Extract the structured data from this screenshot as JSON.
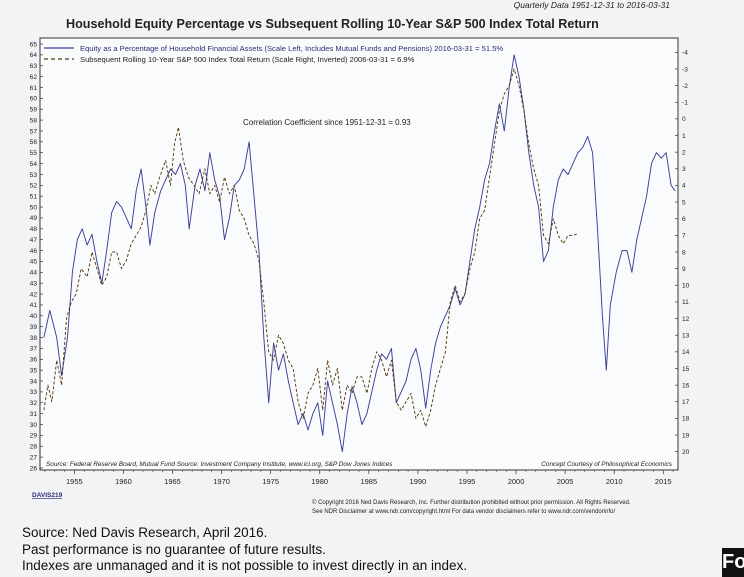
{
  "chart_data": {
    "type": "line",
    "title": "Household Equity Percentage vs Subsequent Rolling 10-Year S&P 500 Index Total Return",
    "subtitle": "Quarterly Data 1951-12-31 to 2016-03-31",
    "annotation": "Correlation Coefficient since 1951-12-31 = 0.93",
    "source_note": "Source: Federal Reserve Board, Mutual Fund Source: Investment Company Institute, www.ici.org, S&P Dow Jones Indices",
    "credit": "Concept Courtesy of Philosophical Economics",
    "chart_id": "DAVIS219",
    "copyright_line1": "© Copyright 2016 Ned Davis Research, Inc. Further distribution prohibited without prior permission. All Rights Reserved.",
    "copyright_line2": "See NDR Disclaimer at www.ndr.com/copyright.html  For data vendor disclaimers refer to www.ndr.com/vendorinfo/",
    "x_ticks": [
      1955,
      1960,
      1965,
      1970,
      1975,
      1980,
      1985,
      1990,
      1995,
      2000,
      2005,
      2010,
      2015
    ],
    "xlim": [
      1951.5,
      2016.5
    ],
    "left_axis": {
      "ticks": [
        26,
        27,
        28,
        29,
        30,
        31,
        32,
        33,
        34,
        35,
        36,
        37,
        38,
        39,
        40,
        41,
        42,
        43,
        44,
        45,
        46,
        47,
        48,
        49,
        50,
        51,
        52,
        53,
        54,
        55,
        56,
        57,
        58,
        59,
        60,
        61,
        62,
        63,
        64,
        65
      ],
      "range": [
        26,
        65
      ]
    },
    "right_axis": {
      "ticks": [
        -4,
        -3,
        -2,
        -1,
        0,
        1,
        2,
        3,
        4,
        5,
        6,
        7,
        8,
        9,
        10,
        11,
        12,
        13,
        14,
        15,
        16,
        17,
        18,
        19,
        20
      ],
      "range": [
        -4.5,
        20.5
      ],
      "inverted": true
    },
    "legend_placement": "top-left",
    "series": [
      {
        "name": "Equity as a Percentage of Household Financial Assets (Scale Left, Includes Mutual Funds and Pensions) 2016-03-31 = 51.5%",
        "axis": "left",
        "color": "#3b3f9a",
        "style": "solid",
        "points": [
          [
            1951.9,
            38
          ],
          [
            1952.5,
            40.5
          ],
          [
            1953.2,
            38
          ],
          [
            1953.7,
            34.5
          ],
          [
            1954.3,
            38
          ],
          [
            1954.8,
            44
          ],
          [
            1955.3,
            47
          ],
          [
            1955.8,
            48
          ],
          [
            1956.3,
            46.5
          ],
          [
            1956.8,
            47.5
          ],
          [
            1957.3,
            45
          ],
          [
            1957.8,
            43
          ],
          [
            1958.3,
            46
          ],
          [
            1958.8,
            49.5
          ],
          [
            1959.3,
            50.5
          ],
          [
            1959.8,
            50
          ],
          [
            1960.3,
            49
          ],
          [
            1960.8,
            48
          ],
          [
            1961.3,
            51.5
          ],
          [
            1961.8,
            53.5
          ],
          [
            1962.3,
            50
          ],
          [
            1962.7,
            46.5
          ],
          [
            1963.2,
            49.5
          ],
          [
            1963.8,
            51.5
          ],
          [
            1964.3,
            52.5
          ],
          [
            1964.8,
            53.5
          ],
          [
            1965.3,
            53
          ],
          [
            1965.8,
            54
          ],
          [
            1966.3,
            52
          ],
          [
            1966.7,
            48
          ],
          [
            1967.3,
            52
          ],
          [
            1967.8,
            53.5
          ],
          [
            1968.3,
            51.5
          ],
          [
            1968.8,
            55
          ],
          [
            1969.3,
            52.5
          ],
          [
            1969.8,
            51
          ],
          [
            1970.3,
            47
          ],
          [
            1970.8,
            49
          ],
          [
            1971.3,
            52
          ],
          [
            1971.8,
            52.5
          ],
          [
            1972.3,
            53.5
          ],
          [
            1972.8,
            56
          ],
          [
            1973.3,
            51
          ],
          [
            1973.8,
            46
          ],
          [
            1974.3,
            38
          ],
          [
            1974.8,
            32
          ],
          [
            1975.3,
            37.5
          ],
          [
            1975.8,
            35
          ],
          [
            1976.3,
            36.5
          ],
          [
            1976.8,
            34
          ],
          [
            1977.3,
            32
          ],
          [
            1977.8,
            30
          ],
          [
            1978.3,
            31
          ],
          [
            1978.8,
            29.5
          ],
          [
            1979.3,
            31
          ],
          [
            1979.8,
            32
          ],
          [
            1980.3,
            29
          ],
          [
            1980.8,
            34
          ],
          [
            1981.3,
            32
          ],
          [
            1981.8,
            30
          ],
          [
            1982.3,
            27.5
          ],
          [
            1982.8,
            31
          ],
          [
            1983.3,
            33.5
          ],
          [
            1983.8,
            32
          ],
          [
            1984.3,
            30
          ],
          [
            1984.8,
            31
          ],
          [
            1985.3,
            33
          ],
          [
            1985.8,
            35
          ],
          [
            1986.3,
            36.5
          ],
          [
            1986.8,
            36
          ],
          [
            1987.3,
            37
          ],
          [
            1987.8,
            32
          ],
          [
            1988.3,
            33
          ],
          [
            1988.8,
            34
          ],
          [
            1989.3,
            36
          ],
          [
            1989.8,
            37
          ],
          [
            1990.3,
            35
          ],
          [
            1990.8,
            31.5
          ],
          [
            1991.3,
            35
          ],
          [
            1991.8,
            37.5
          ],
          [
            1992.3,
            39
          ],
          [
            1992.8,
            40
          ],
          [
            1993.3,
            41
          ],
          [
            1993.8,
            42.5
          ],
          [
            1994.3,
            41
          ],
          [
            1994.8,
            42
          ],
          [
            1995.3,
            45
          ],
          [
            1995.8,
            48
          ],
          [
            1996.3,
            50
          ],
          [
            1996.8,
            52.5
          ],
          [
            1997.3,
            54
          ],
          [
            1997.8,
            57
          ],
          [
            1998.3,
            59.5
          ],
          [
            1998.8,
            57
          ],
          [
            1999.3,
            61
          ],
          [
            1999.8,
            64
          ],
          [
            2000.3,
            62
          ],
          [
            2000.8,
            59
          ],
          [
            2001.3,
            55
          ],
          [
            2001.8,
            52
          ],
          [
            2002.3,
            50
          ],
          [
            2002.8,
            45
          ],
          [
            2003.3,
            46
          ],
          [
            2003.8,
            50
          ],
          [
            2004.3,
            52.5
          ],
          [
            2004.8,
            53.5
          ],
          [
            2005.3,
            53
          ],
          [
            2005.8,
            54
          ],
          [
            2006.3,
            55
          ],
          [
            2006.8,
            55.5
          ],
          [
            2007.3,
            56.5
          ],
          [
            2007.8,
            55
          ],
          [
            2008.3,
            48
          ],
          [
            2008.8,
            40
          ],
          [
            2009.2,
            35
          ],
          [
            2009.6,
            41
          ],
          [
            2010.2,
            44
          ],
          [
            2010.8,
            46
          ],
          [
            2011.3,
            46
          ],
          [
            2011.8,
            44
          ],
          [
            2012.3,
            47
          ],
          [
            2012.8,
            49
          ],
          [
            2013.3,
            51
          ],
          [
            2013.8,
            54
          ],
          [
            2014.3,
            55
          ],
          [
            2014.8,
            54.5
          ],
          [
            2015.3,
            55
          ],
          [
            2015.8,
            52
          ],
          [
            2016.2,
            51.5
          ]
        ]
      },
      {
        "name": "Subsequent Rolling 10-Year S&P 500 Index Total Return (Scale Right, Inverted) 2006-03-31 = 6.9%",
        "axis": "right",
        "color": "#5a3a10",
        "style": "dashed",
        "points": [
          [
            1951.9,
            17.5
          ],
          [
            1952.3,
            16
          ],
          [
            1952.7,
            17
          ],
          [
            1953.2,
            14.5
          ],
          [
            1953.7,
            16
          ],
          [
            1954.2,
            12
          ],
          [
            1954.7,
            11
          ],
          [
            1955.2,
            10.5
          ],
          [
            1955.7,
            9
          ],
          [
            1956.3,
            9.5
          ],
          [
            1956.8,
            8
          ],
          [
            1957.3,
            9
          ],
          [
            1957.8,
            10
          ],
          [
            1958.3,
            9.5
          ],
          [
            1958.8,
            8
          ],
          [
            1959.3,
            8
          ],
          [
            1959.8,
            9
          ],
          [
            1960.3,
            8.5
          ],
          [
            1960.8,
            7.5
          ],
          [
            1961.3,
            7
          ],
          [
            1961.8,
            6.5
          ],
          [
            1962.3,
            5.5
          ],
          [
            1962.8,
            4
          ],
          [
            1963.2,
            4.5
          ],
          [
            1963.7,
            3.5
          ],
          [
            1964.3,
            2.5
          ],
          [
            1964.8,
            4
          ],
          [
            1965.2,
            1.5
          ],
          [
            1965.6,
            0.5
          ],
          [
            1966.1,
            2.5
          ],
          [
            1966.6,
            3.5
          ],
          [
            1967.2,
            4
          ],
          [
            1967.7,
            4.5
          ],
          [
            1968.3,
            3
          ],
          [
            1968.8,
            4.5
          ],
          [
            1969.3,
            4
          ],
          [
            1969.8,
            5
          ],
          [
            1970.3,
            3.5
          ],
          [
            1970.8,
            4.5
          ],
          [
            1971.3,
            4
          ],
          [
            1971.8,
            5.5
          ],
          [
            1972.3,
            6
          ],
          [
            1972.8,
            7
          ],
          [
            1973.3,
            7.5
          ],
          [
            1973.8,
            8.5
          ],
          [
            1974.3,
            11
          ],
          [
            1974.8,
            14
          ],
          [
            1975.3,
            14.5
          ],
          [
            1975.8,
            13
          ],
          [
            1976.3,
            13.5
          ],
          [
            1976.8,
            14.5
          ],
          [
            1977.3,
            15
          ],
          [
            1977.8,
            17
          ],
          [
            1978.3,
            18
          ],
          [
            1978.8,
            16.5
          ],
          [
            1979.3,
            16
          ],
          [
            1979.8,
            15
          ],
          [
            1980.3,
            17.5
          ],
          [
            1980.8,
            14.5
          ],
          [
            1981.3,
            16
          ],
          [
            1981.8,
            15
          ],
          [
            1982.3,
            17.5
          ],
          [
            1982.8,
            16
          ],
          [
            1983.3,
            16.5
          ],
          [
            1983.8,
            15.5
          ],
          [
            1984.3,
            15.5
          ],
          [
            1984.8,
            16.5
          ],
          [
            1985.3,
            15
          ],
          [
            1985.8,
            14
          ],
          [
            1986.3,
            14.5
          ],
          [
            1986.8,
            15.5
          ],
          [
            1987.3,
            14.5
          ],
          [
            1987.8,
            17
          ],
          [
            1988.3,
            17.5
          ],
          [
            1988.8,
            17
          ],
          [
            1989.3,
            16.5
          ],
          [
            1989.8,
            18
          ],
          [
            1990.3,
            17.5
          ],
          [
            1990.8,
            18.5
          ],
          [
            1991.3,
            17.5
          ],
          [
            1991.8,
            16
          ],
          [
            1992.3,
            15
          ],
          [
            1992.8,
            14
          ],
          [
            1993.3,
            11
          ],
          [
            1993.8,
            10
          ],
          [
            1994.3,
            11
          ],
          [
            1994.8,
            10.5
          ],
          [
            1995.3,
            9
          ],
          [
            1995.8,
            8
          ],
          [
            1996.3,
            6
          ],
          [
            1996.8,
            5.5
          ],
          [
            1997.3,
            3.5
          ],
          [
            1997.8,
            1.5
          ],
          [
            1998.3,
            -0.5
          ],
          [
            1998.8,
            -1.5
          ],
          [
            1999.3,
            -2
          ],
          [
            1999.8,
            -3
          ],
          [
            2000.3,
            -2
          ],
          [
            2000.8,
            -0.5
          ],
          [
            2001.3,
            1.5
          ],
          [
            2001.8,
            3
          ],
          [
            2002.3,
            4
          ],
          [
            2002.8,
            7
          ],
          [
            2003.3,
            7.5
          ],
          [
            2003.8,
            6
          ],
          [
            2004.3,
            7
          ],
          [
            2004.8,
            7.5
          ],
          [
            2005.3,
            7
          ],
          [
            2005.8,
            7
          ],
          [
            2006.3,
            6.9
          ]
        ]
      }
    ]
  },
  "page_notes": {
    "line1": "Source:  Ned Davis Research, April 2016.",
    "line2": "Past performance is no guarantee of future results.",
    "line3": "Indexes are unmanaged and it is not possible to invest directly in an index."
  },
  "corner_mark": "Fo"
}
